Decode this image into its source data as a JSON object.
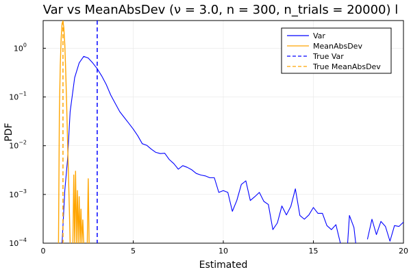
{
  "chart_data": {
    "type": "line",
    "title": "Var vs MeanAbsDev (ν = 3.0, n = 300, n_trials = 20000) l",
    "xlabel": "Estimated",
    "ylabel": "PDF",
    "xlim": [
      0,
      20
    ],
    "ylim": [
      0.0001,
      3.7
    ],
    "yscale": "log",
    "grid": true,
    "legend_position": "top-right",
    "x_ticks": [
      {
        "value": 0,
        "label": "0"
      },
      {
        "value": 5,
        "label": "5"
      },
      {
        "value": 10,
        "label": "10"
      },
      {
        "value": 15,
        "label": "15"
      },
      {
        "value": 20,
        "label": "20"
      }
    ],
    "y_ticks": [
      {
        "value": 0.0001,
        "base": "10",
        "exp": "−4"
      },
      {
        "value": 0.001,
        "base": "10",
        "exp": "−3"
      },
      {
        "value": 0.01,
        "base": "10",
        "exp": "−2"
      },
      {
        "value": 0.1,
        "base": "10",
        "exp": "−1"
      },
      {
        "value": 1,
        "base": "10",
        "exp": "0"
      }
    ],
    "series": [
      {
        "name": "Var",
        "color": "#0000ff",
        "style": "solid",
        "points": [
          [
            1.05,
            0.0001
          ],
          [
            1.2,
            0.0012
          ],
          [
            1.35,
            0.005
          ],
          [
            1.5,
            0.05
          ],
          [
            1.75,
            0.25
          ],
          [
            2.0,
            0.5
          ],
          [
            2.25,
            0.68
          ],
          [
            2.5,
            0.63
          ],
          [
            2.75,
            0.5
          ],
          [
            3.0,
            0.38
          ],
          [
            3.25,
            0.27
          ],
          [
            3.5,
            0.18
          ],
          [
            3.75,
            0.11
          ],
          [
            4.0,
            0.074
          ],
          [
            4.25,
            0.05
          ],
          [
            4.5,
            0.038
          ],
          [
            4.75,
            0.029
          ],
          [
            5.0,
            0.022
          ],
          [
            5.25,
            0.016
          ],
          [
            5.5,
            0.011
          ],
          [
            5.75,
            0.0102
          ],
          [
            6.0,
            0.0085
          ],
          [
            6.25,
            0.0073
          ],
          [
            6.5,
            0.0069
          ],
          [
            6.75,
            0.007
          ],
          [
            7.0,
            0.0052
          ],
          [
            7.25,
            0.0043
          ],
          [
            7.5,
            0.0033
          ],
          [
            7.75,
            0.0039
          ],
          [
            8.0,
            0.0036
          ],
          [
            8.25,
            0.0032
          ],
          [
            8.5,
            0.0027
          ],
          [
            8.75,
            0.0025
          ],
          [
            9.0,
            0.0024
          ],
          [
            9.25,
            0.0022
          ],
          [
            9.5,
            0.0022
          ],
          [
            9.75,
            0.0011
          ],
          [
            10.0,
            0.0012
          ],
          [
            10.25,
            0.0011
          ],
          [
            10.5,
            0.00045
          ],
          [
            10.75,
            0.00075
          ],
          [
            11.0,
            0.0016
          ],
          [
            11.25,
            0.0019
          ],
          [
            11.5,
            0.00075
          ],
          [
            11.75,
            0.0009
          ],
          [
            12.0,
            0.0011
          ],
          [
            12.25,
            0.00072
          ],
          [
            12.5,
            0.00062
          ],
          [
            12.75,
            0.00019
          ],
          [
            13.0,
            0.00026
          ],
          [
            13.25,
            0.00058
          ],
          [
            13.5,
            0.00038
          ],
          [
            13.75,
            0.00057
          ],
          [
            14.0,
            0.0013
          ],
          [
            14.25,
            0.00037
          ],
          [
            14.5,
            0.00031
          ],
          [
            14.75,
            0.00038
          ],
          [
            15.0,
            0.00054
          ],
          [
            15.25,
            0.00041
          ],
          [
            15.5,
            0.00041
          ],
          [
            15.75,
            0.00023
          ],
          [
            16.0,
            0.00019
          ],
          [
            16.25,
            0.00024
          ],
          [
            16.5,
            0.0001
          ],
          null,
          [
            16.9,
            0.0001
          ],
          [
            17.0,
            0.00037
          ],
          [
            17.25,
            0.00021
          ],
          [
            17.35,
            0.0001
          ],
          null,
          [
            18.0,
            0.00012
          ],
          [
            18.25,
            0.00031
          ],
          [
            18.5,
            0.00015
          ],
          [
            18.75,
            0.00028
          ],
          [
            19.0,
            0.00022
          ],
          [
            19.25,
            0.00011
          ],
          [
            19.5,
            0.00023
          ],
          [
            19.75,
            0.00022
          ],
          [
            20.0,
            0.00027
          ]
        ]
      },
      {
        "name": "MeanAbsDev",
        "color": "#ffa500",
        "style": "solid",
        "points": [
          [
            0.85,
            0.0001
          ],
          [
            0.9,
            0.05
          ],
          [
            0.95,
            0.45
          ],
          [
            1.0,
            1.6
          ],
          [
            1.05,
            3.2
          ],
          [
            1.1,
            3.6
          ],
          [
            1.15,
            2.6
          ],
          [
            1.2,
            1.2
          ],
          [
            1.25,
            0.35
          ],
          [
            1.3,
            0.08
          ],
          [
            1.35,
            0.015
          ],
          [
            1.4,
            0.003
          ],
          [
            1.45,
            0.0006
          ],
          [
            1.5,
            0.0001
          ],
          null,
          [
            1.65,
            0.0001
          ],
          [
            1.7,
            0.0025
          ],
          [
            1.75,
            0.0001
          ],
          [
            1.8,
            0.003
          ],
          [
            1.85,
            0.0001
          ],
          [
            1.9,
            0.0012
          ],
          [
            1.95,
            0.0001
          ],
          [
            2.0,
            0.0009
          ],
          [
            2.05,
            0.0001
          ],
          [
            2.1,
            0.0005
          ],
          [
            2.15,
            0.0001
          ],
          [
            2.2,
            0.0003
          ],
          [
            2.25,
            0.0001
          ],
          null,
          [
            2.45,
            0.0001
          ],
          [
            2.5,
            0.0021
          ],
          [
            2.55,
            0.0001
          ]
        ]
      },
      {
        "name": "True Var",
        "color": "#0000ff",
        "style": "dashed",
        "vline_x": 3.0
      },
      {
        "name": "True MeanAbsDev",
        "color": "#ffa500",
        "style": "dashed",
        "vline_x": 1.1
      }
    ]
  }
}
